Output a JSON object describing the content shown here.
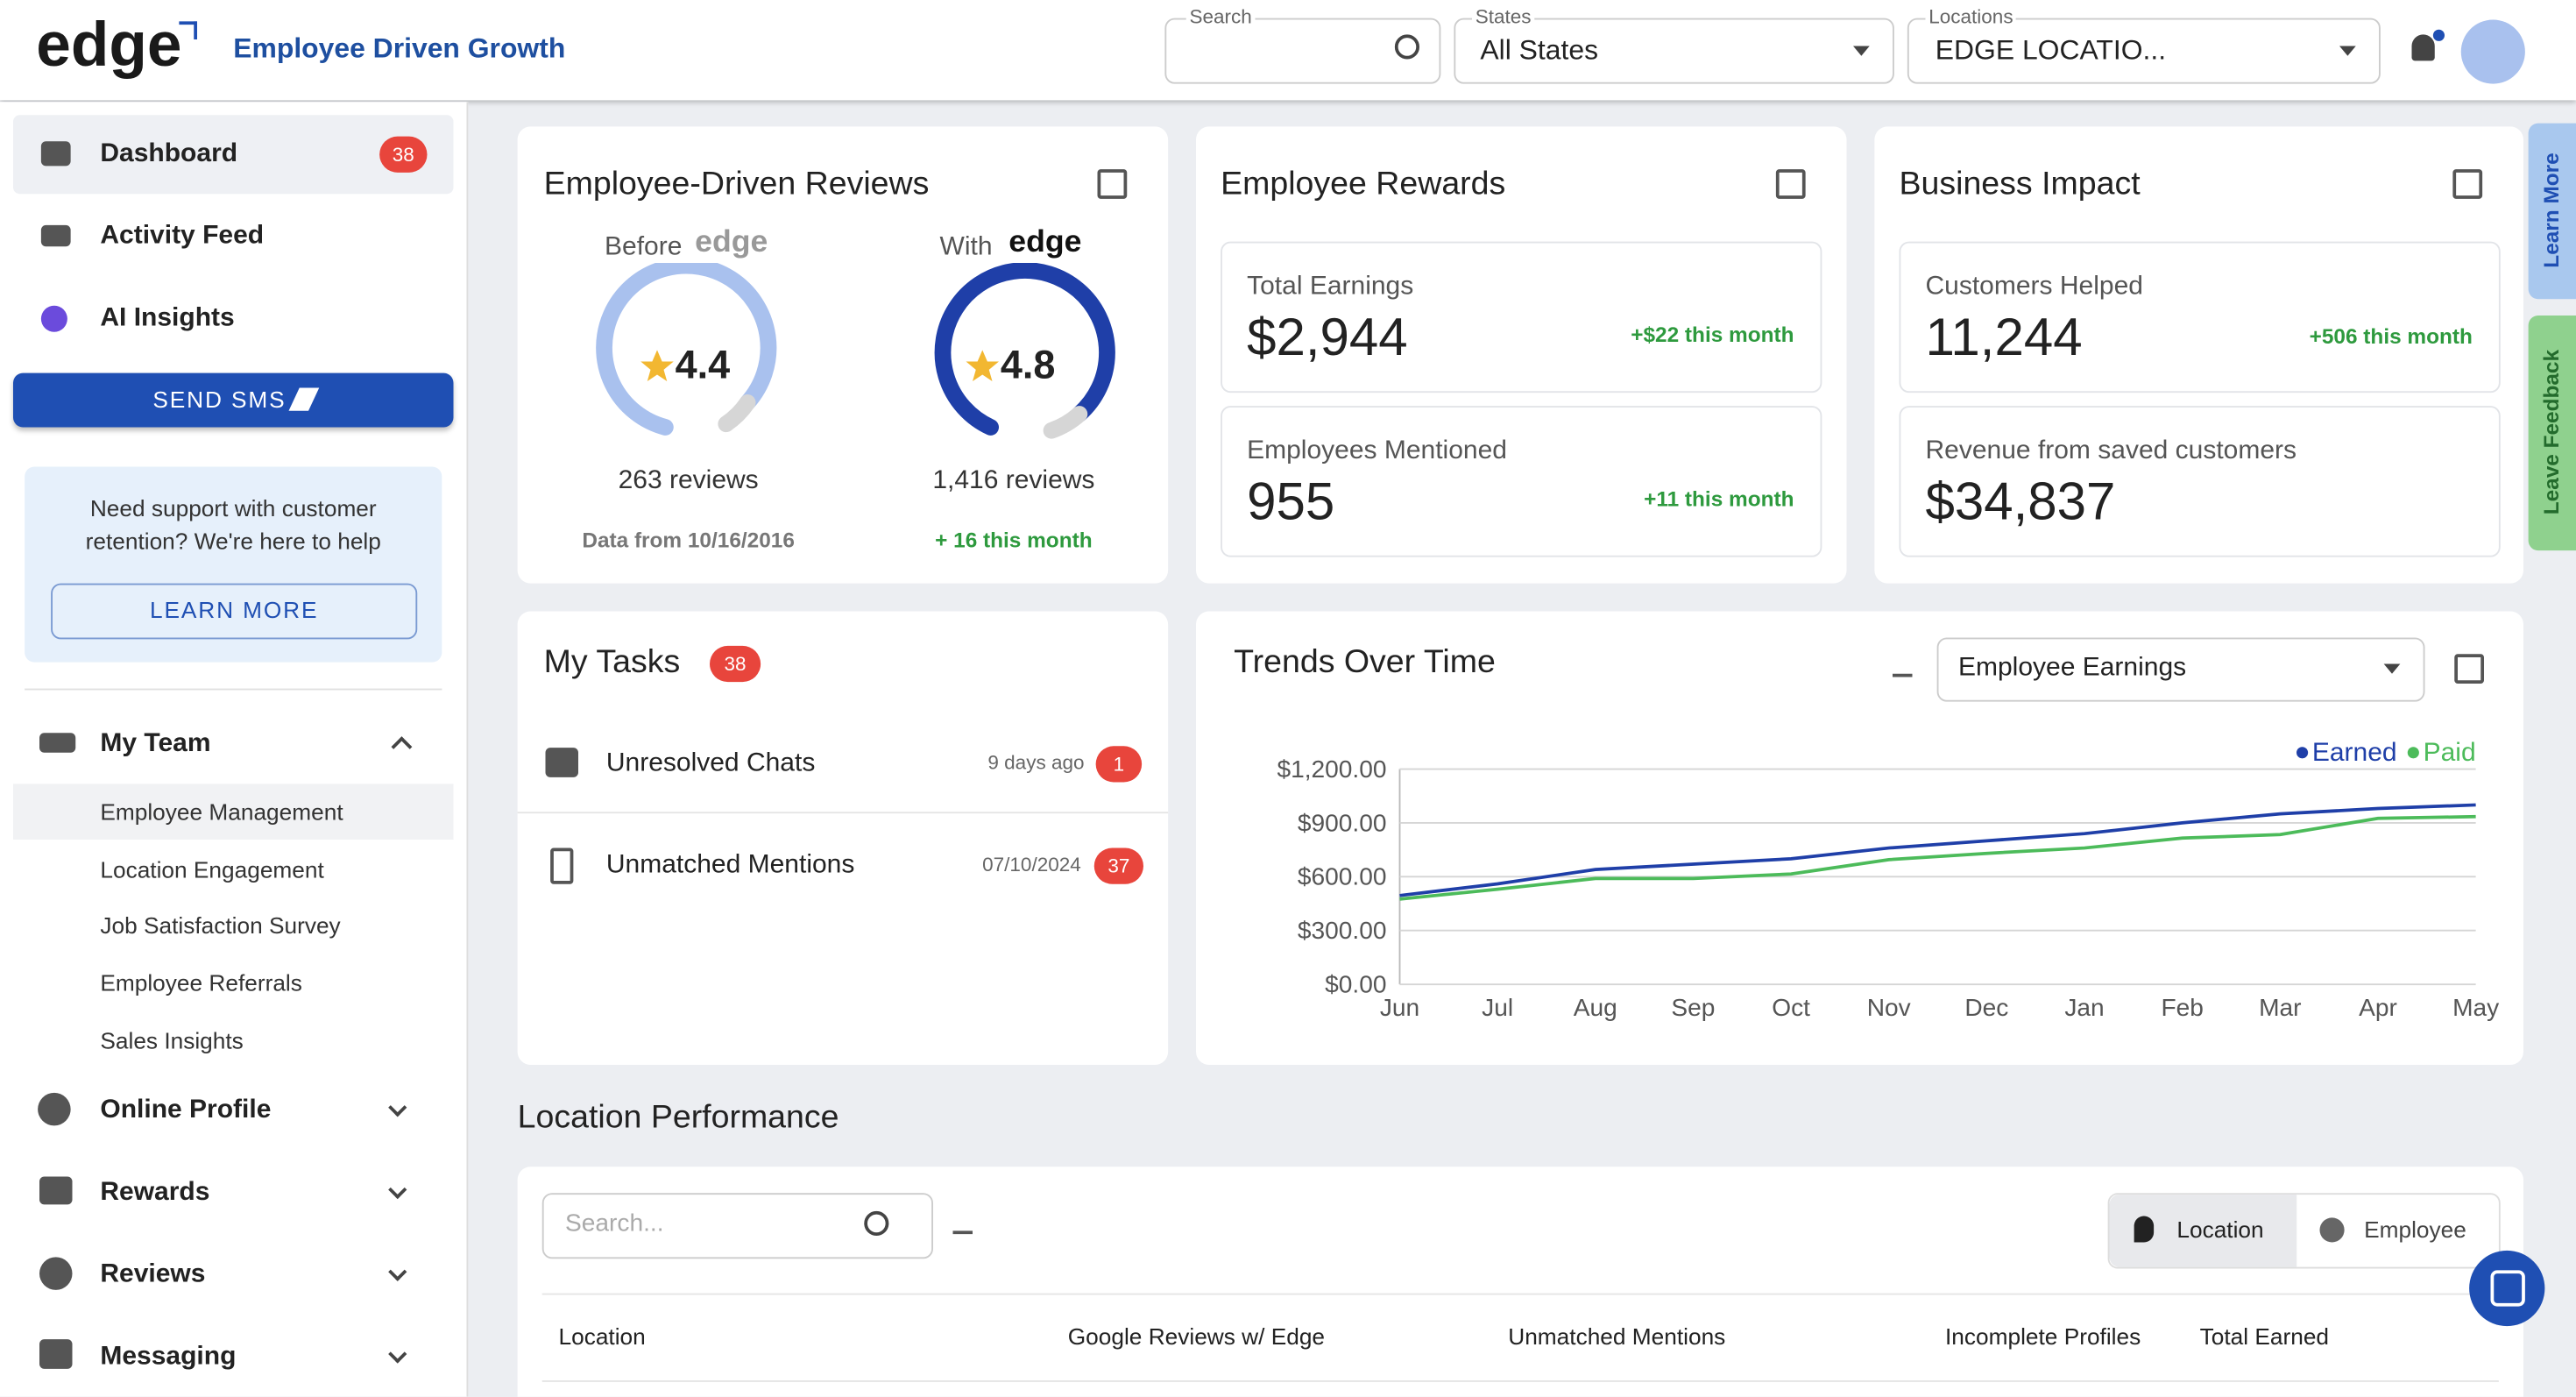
{
  "header": {
    "logo": "edge",
    "tagline": "Employee Driven Growth",
    "search_label": "Search",
    "states_label": "States",
    "states_value": "All States",
    "locations_label": "Locations",
    "locations_value": "EDGE LOCATIO..."
  },
  "sidebar": {
    "items": [
      {
        "label": "Dashboard",
        "badge": "38"
      },
      {
        "label": "Activity Feed"
      },
      {
        "label": "AI Insights"
      }
    ],
    "button": "SEND SMS",
    "support": {
      "text": "Need support with customer retention? We're here to help",
      "button": "LEARN MORE"
    },
    "team": {
      "label": "My Team",
      "children": [
        "Employee Management",
        "Location Engagement",
        "Job Satisfaction Survey",
        "Employee Referrals",
        "Sales Insights"
      ]
    },
    "sections": [
      "Online Profile",
      "Rewards",
      "Reviews",
      "Messaging"
    ]
  },
  "reviews": {
    "title": "Employee-Driven Reviews",
    "before": {
      "label": "Before",
      "rating": "4.4",
      "count": "263 reviews",
      "note": "Data from 10/16/2016"
    },
    "with": {
      "label": "With",
      "rating": "4.8",
      "count": "1,416 reviews",
      "note": "+ 16 this month"
    }
  },
  "rewards": {
    "title": "Employee Rewards",
    "stats": [
      {
        "label": "Total Earnings",
        "value": "$2,944",
        "change": "+$22 this month"
      },
      {
        "label": "Employees Mentioned",
        "value": "955",
        "change": "+11 this month"
      }
    ]
  },
  "impact": {
    "title": "Business Impact",
    "stats": [
      {
        "label": "Customers Helped",
        "value": "11,244",
        "change": "+506 this month"
      },
      {
        "label": "Revenue from saved customers",
        "value": "$34,837"
      }
    ]
  },
  "tasks": {
    "title": "My Tasks",
    "badge": "38",
    "items": [
      {
        "label": "Unresolved Chats",
        "date": "9 days ago",
        "count": "1"
      },
      {
        "label": "Unmatched Mentions",
        "date": "07/10/2024",
        "count": "37"
      }
    ]
  },
  "chart_data": {
    "type": "line",
    "title": "Trends Over Time",
    "dropdown": "Employee Earnings",
    "categories": [
      "Jun",
      "Jul",
      "Aug",
      "Sep",
      "Oct",
      "Nov",
      "Dec",
      "Jan",
      "Feb",
      "Mar",
      "Apr",
      "May"
    ],
    "series": [
      {
        "name": "Earned",
        "color": "#1f3fa8",
        "values": [
          495,
          560,
          640,
          670,
          700,
          760,
          800,
          840,
          900,
          950,
          980,
          1000
        ]
      },
      {
        "name": "Paid",
        "color": "#4cbb5a",
        "values": [
          475,
          530,
          590,
          590,
          615,
          695,
          730,
          760,
          815,
          835,
          925,
          935
        ]
      }
    ],
    "ylim": [
      0,
      1200
    ],
    "yticks": [
      {
        "value": 0,
        "label": "$0.00"
      },
      {
        "value": 300,
        "label": "$300.00"
      },
      {
        "value": 600,
        "label": "$600.00"
      },
      {
        "value": 900,
        "label": "$900.00"
      },
      {
        "value": 1200,
        "label": "$1,200.00"
      }
    ],
    "grid": true,
    "legend": "top-right"
  },
  "location_performance": {
    "title": "Location Performance",
    "search_placeholder": "Search...",
    "toggle": [
      "Location",
      "Employee"
    ],
    "columns": [
      "Location",
      "Google Reviews w/ Edge",
      "Unmatched Mentions",
      "Incomplete Profiles",
      "Total Earned"
    ]
  },
  "side_tabs": [
    "Learn More",
    "Leave Feedback"
  ]
}
